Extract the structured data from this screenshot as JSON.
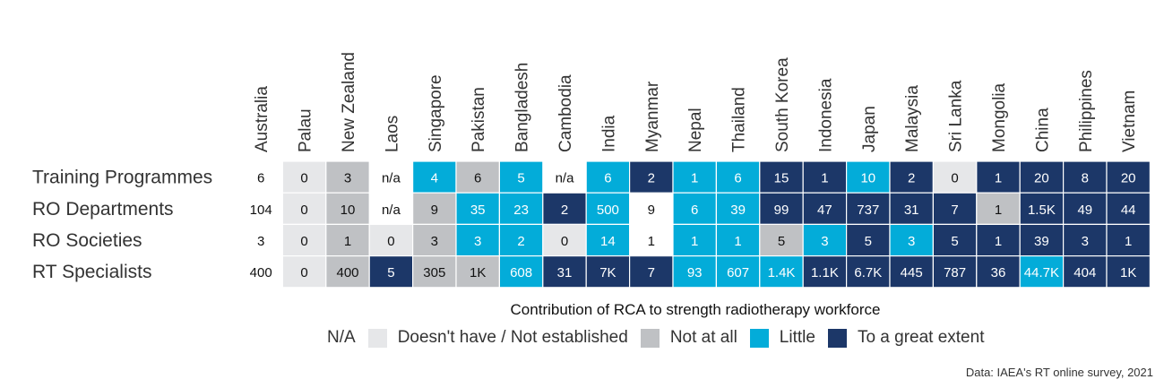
{
  "chart_data": {
    "type": "heatmap",
    "columns": [
      "Australia",
      "Palau",
      "New Zealand",
      "Laos",
      "Singapore",
      "Pakistan",
      "Bangladesh",
      "Cambodia",
      "India",
      "Myanmar",
      "Nepal",
      "Thailand",
      "South Korea",
      "Indonesia",
      "Japan",
      "Malaysia",
      "Sri Lanka",
      "Mongolia",
      "China",
      "Philippines",
      "Vietnam"
    ],
    "rows": [
      {
        "label": "Training Programmes",
        "values": [
          "6",
          "0",
          "3",
          "n/a",
          "4",
          "6",
          "5",
          "n/a",
          "6",
          "2",
          "1",
          "6",
          "15",
          "1",
          "10",
          "2",
          "0",
          "1",
          "20",
          "8",
          "20"
        ],
        "categories": [
          "none",
          "doesnt",
          "notatall",
          "na",
          "little",
          "notatall",
          "little",
          "na",
          "little",
          "great",
          "little",
          "little",
          "great",
          "great",
          "little",
          "great",
          "doesnt",
          "great",
          "great",
          "great",
          "great"
        ]
      },
      {
        "label": "RO Departments",
        "values": [
          "104",
          "0",
          "10",
          "n/a",
          "9",
          "35",
          "23",
          "2",
          "500",
          "9",
          "6",
          "39",
          "99",
          "47",
          "737",
          "31",
          "7",
          "1",
          "1.5K",
          "49",
          "44"
        ],
        "categories": [
          "none",
          "doesnt",
          "notatall",
          "na",
          "notatall",
          "little",
          "little",
          "great",
          "little",
          "na",
          "little",
          "little",
          "great",
          "great",
          "great",
          "great",
          "great",
          "notatall",
          "great",
          "great",
          "great"
        ]
      },
      {
        "label": "RO Societies",
        "values": [
          "3",
          "0",
          "1",
          "0",
          "3",
          "3",
          "2",
          "0",
          "14",
          "1",
          "1",
          "1",
          "5",
          "3",
          "5",
          "3",
          "5",
          "1",
          "39",
          "3",
          "1"
        ],
        "categories": [
          "none",
          "doesnt",
          "notatall",
          "doesnt",
          "notatall",
          "little",
          "little",
          "doesnt",
          "little",
          "na",
          "little",
          "little",
          "notatall",
          "little",
          "great",
          "little",
          "great",
          "great",
          "great",
          "great",
          "great"
        ]
      },
      {
        "label": "RT Specialists",
        "values": [
          "400",
          "0",
          "400",
          "5",
          "305",
          "1K",
          "608",
          "31",
          "7K",
          "7",
          "93",
          "607",
          "1.4K",
          "1.1K",
          "6.7K",
          "445",
          "787",
          "36",
          "44.7K",
          "404",
          "1K"
        ],
        "categories": [
          "none",
          "doesnt",
          "notatall",
          "great",
          "notatall",
          "notatall",
          "little",
          "great",
          "great",
          "great",
          "little",
          "little",
          "little",
          "great",
          "great",
          "great",
          "great",
          "great",
          "little",
          "great",
          "great"
        ]
      }
    ],
    "legend_title": "Contribution of RCA to strength radiotherapy workforce",
    "legend": [
      {
        "key": "na",
        "label": "N/A",
        "color": "#ffffff"
      },
      {
        "key": "doesnt",
        "label": "Doesn't have / Not established",
        "color": "#e6e7e9"
      },
      {
        "key": "notatall",
        "label": "Not at all",
        "color": "#bfc1c4"
      },
      {
        "key": "little",
        "label": "Little",
        "color": "#03acd9"
      },
      {
        "key": "great",
        "label": "To a great extent",
        "color": "#1c3768"
      }
    ],
    "source": "Data: IAEA's RT online survey, 2021"
  }
}
